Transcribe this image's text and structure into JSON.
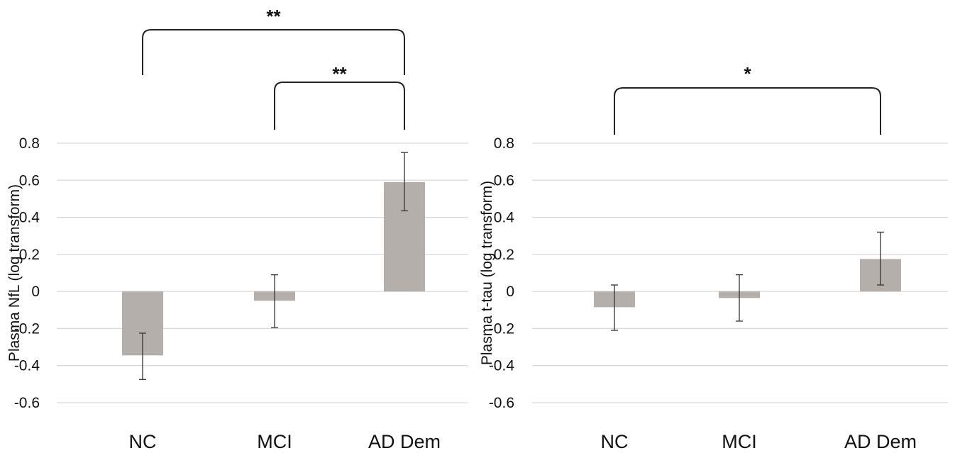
{
  "chart_data": [
    {
      "type": "bar",
      "categories": [
        "NC",
        "MCI",
        "AD Dem"
      ],
      "series": [
        {
          "values": [
            -0.345,
            -0.05,
            0.59
          ],
          "error_low": [
            -0.475,
            -0.195,
            0.435
          ],
          "error_high": [
            -0.225,
            0.09,
            0.75
          ]
        }
      ],
      "title": "",
      "xlabel": "",
      "ylabel": "Plasma NfL (log transform)",
      "ylim": [
        -0.6,
        0.8
      ],
      "yticks": [
        0.8,
        0.6,
        0.4,
        0.2,
        0,
        -0.2,
        -0.4,
        -0.6
      ],
      "ytick_labels": [
        "0.8",
        "0.6",
        "0.4",
        "0.2",
        "0",
        "-0.2",
        "-0.4",
        "-0.6"
      ],
      "grid": true,
      "bar_color": "#b4afab",
      "significance": [
        {
          "from": "NC",
          "to": "AD Dem",
          "label": "**"
        },
        {
          "from": "MCI",
          "to": "AD Dem",
          "label": "**"
        }
      ]
    },
    {
      "type": "bar",
      "categories": [
        "NC",
        "MCI",
        "AD Dem"
      ],
      "series": [
        {
          "values": [
            -0.085,
            -0.035,
            0.175
          ],
          "error_low": [
            -0.21,
            -0.16,
            0.035
          ],
          "error_high": [
            0.035,
            0.09,
            0.32
          ]
        }
      ],
      "title": "",
      "xlabel": "",
      "ylabel": "Plasma t-tau (log transform)",
      "ylim": [
        -0.6,
        0.8
      ],
      "yticks": [
        0.8,
        0.6,
        0.4,
        0.2,
        0,
        -0.2,
        -0.4,
        -0.6
      ],
      "ytick_labels": [
        "0.8",
        "0.6",
        "0.4",
        "0.2",
        "0",
        "-0.2",
        "-0.4",
        "-0.6"
      ],
      "grid": true,
      "bar_color": "#b4afab",
      "significance": [
        {
          "from": "NC",
          "to": "AD Dem",
          "label": "*"
        }
      ]
    }
  ]
}
